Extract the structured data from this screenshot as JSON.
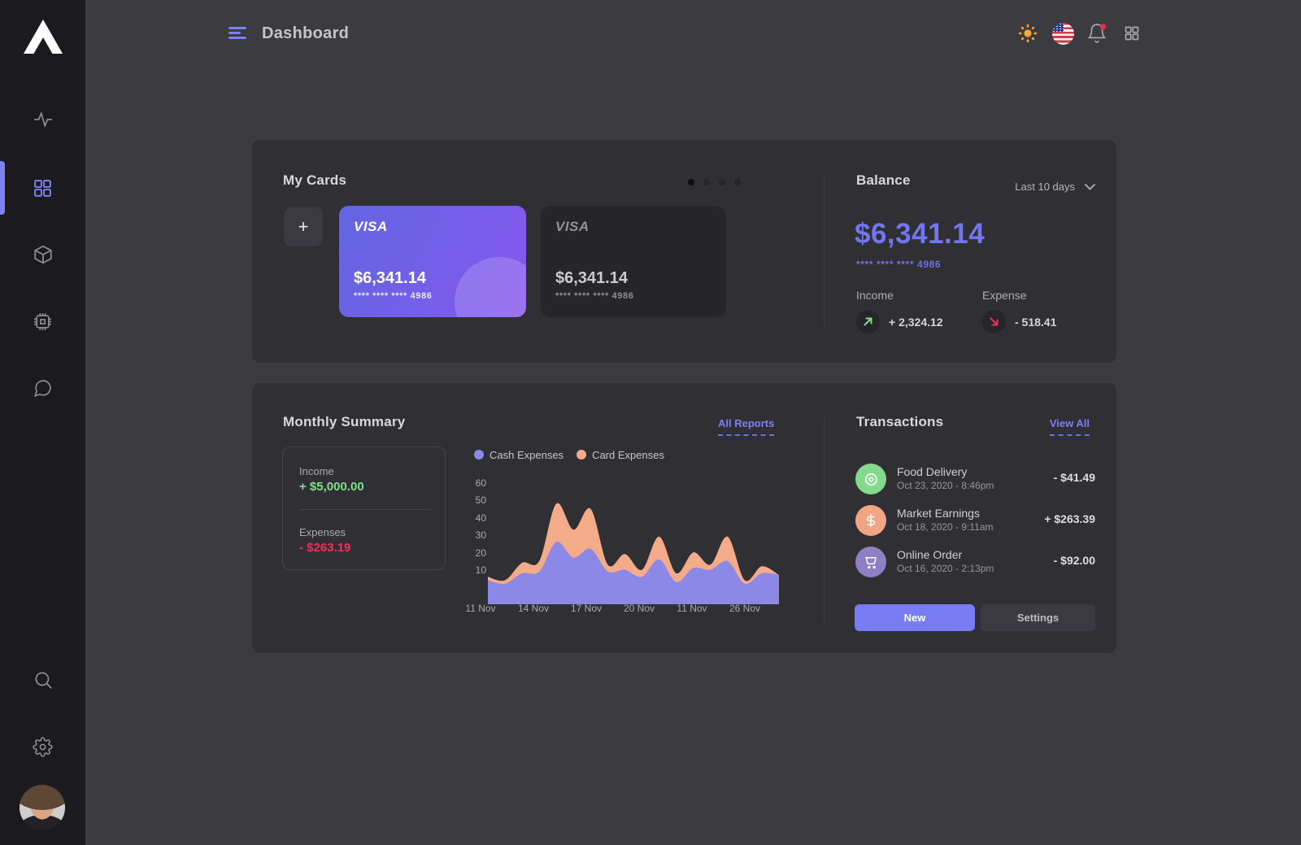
{
  "header": {
    "title": "Dashboard"
  },
  "sidebar": {
    "items": [
      {
        "name": "activity",
        "active": false
      },
      {
        "name": "dashboard",
        "active": true
      },
      {
        "name": "products",
        "active": false
      },
      {
        "name": "system",
        "active": false
      },
      {
        "name": "messages",
        "active": false
      },
      {
        "name": "search",
        "active": false
      },
      {
        "name": "settings",
        "active": false
      }
    ]
  },
  "topbar": {
    "icons": [
      "theme-sun",
      "language-flag-us",
      "notifications-bell-with-badge",
      "apps-grid"
    ]
  },
  "my_cards": {
    "title": "My Cards",
    "add_label": "+",
    "carousel_dots": 4,
    "active_dot": 0,
    "cards": [
      {
        "brand": "VISA",
        "amount": "$6,341.14",
        "number": "**** **** **** 4986",
        "style": "purple"
      },
      {
        "brand": "VISA",
        "amount": "$6,341.14",
        "number": "**** **** **** 4986",
        "style": "dark"
      }
    ]
  },
  "balance": {
    "title": "Balance",
    "filter_label": "Last  10 days",
    "amount": "$6,341.14",
    "card_number": "**** **** **** 4986",
    "income_label": "Income",
    "income_value": "+ 2,324.12",
    "expense_label": "Expense",
    "expense_value": "- 518.41",
    "income_color": "#7ee289",
    "expense_color": "#f0315e"
  },
  "monthly_summary": {
    "title": "Monthly Summary",
    "link_label": "All Reports",
    "income_label": "Income",
    "income_value": "+ $5,000.00",
    "expenses_label": "Expenses",
    "expenses_value": "- $263.19"
  },
  "chart_data": {
    "type": "area",
    "title": "Monthly Summary",
    "xlabel": "",
    "ylabel": "",
    "x_tick_labels": [
      "11 Nov",
      "14 Nov",
      "17 Nov",
      "20 Nov",
      "11 Nov",
      "26 Nov"
    ],
    "yticks": [
      60,
      50,
      40,
      30,
      20,
      10
    ],
    "ylim": [
      0,
      65
    ],
    "grid": false,
    "legend_position": "top",
    "series": [
      {
        "name": "Cash Expenses",
        "color": "#8c88e8",
        "values": [
          4,
          2,
          8,
          9,
          26,
          17,
          22,
          9,
          10,
          6,
          16,
          3,
          11,
          10,
          15,
          2,
          8,
          7
        ]
      },
      {
        "name": "Card Expenses",
        "color": "#f4ab89",
        "values": [
          6,
          4,
          14,
          15,
          48,
          33,
          45,
          13,
          19,
          10,
          29,
          8,
          20,
          13,
          29,
          4,
          12,
          7
        ]
      }
    ]
  },
  "transactions": {
    "title": "Transactions",
    "link_label": "View All",
    "items": [
      {
        "title": "Food Delivery",
        "datetime": "Oct 23, 2020 - 8:46pm",
        "amount": "- $41.49",
        "icon": "disc-icon",
        "color": "#83da8d"
      },
      {
        "title": "Market Earnings",
        "datetime": "Oct 18, 2020 - 9:11am",
        "amount": "+ $263.39",
        "icon": "dollar-icon",
        "color": "#f2a585"
      },
      {
        "title": "Online Order",
        "datetime": "Oct 16, 2020 - 2:13pm",
        "amount": "- $92.00",
        "icon": "cart-icon",
        "color": "#8f80c6"
      }
    ],
    "buttons": {
      "new": "New",
      "settings": "Settings"
    }
  }
}
